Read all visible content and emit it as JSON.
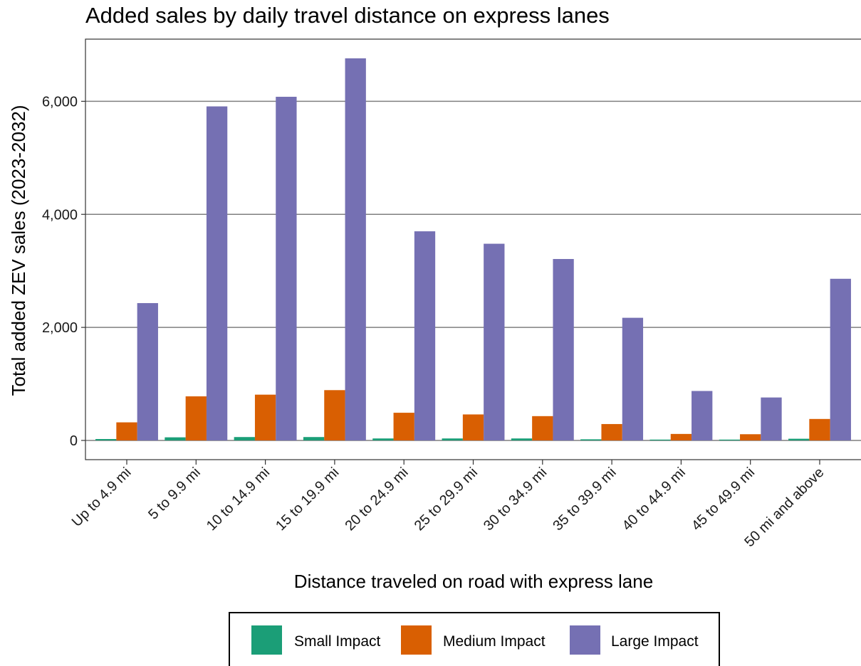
{
  "chart_data": {
    "type": "bar",
    "title": "Added sales by daily travel distance on express lanes",
    "xlabel": "Distance traveled on road with express lane",
    "ylabel": "Total added ZEV sales (2023-2032)",
    "categories": [
      "Up to 4.9 mi",
      "5 to 9.9 mi",
      "10 to 14.9 mi",
      "15 to 19.9 mi",
      "20 to 24.9 mi",
      "25 to 29.9 mi",
      "30 to 34.9 mi",
      "35 to 39.9 mi",
      "40 to 44.9 mi",
      "45 to 49.9 mi",
      "50 mi and above"
    ],
    "series": [
      {
        "name": "Small Impact",
        "color": "#1b9e77",
        "values": [
          25,
          55,
          60,
          60,
          35,
          35,
          35,
          20,
          15,
          15,
          30
        ]
      },
      {
        "name": "Medium Impact",
        "color": "#d95f02",
        "values": [
          320,
          780,
          810,
          890,
          490,
          460,
          430,
          290,
          115,
          110,
          380
        ]
      },
      {
        "name": "Large Impact",
        "color": "#7570b3",
        "values": [
          2430,
          5910,
          6080,
          6760,
          3700,
          3480,
          3210,
          2170,
          875,
          760,
          2860
        ]
      }
    ],
    "ylim": [
      -340,
      7100
    ],
    "yticks": [
      0,
      2000,
      4000,
      6000
    ],
    "ytick_labels": [
      "0",
      "2,000",
      "4,000",
      "6,000"
    ],
    "grid": true,
    "legend_position": "bottom"
  }
}
